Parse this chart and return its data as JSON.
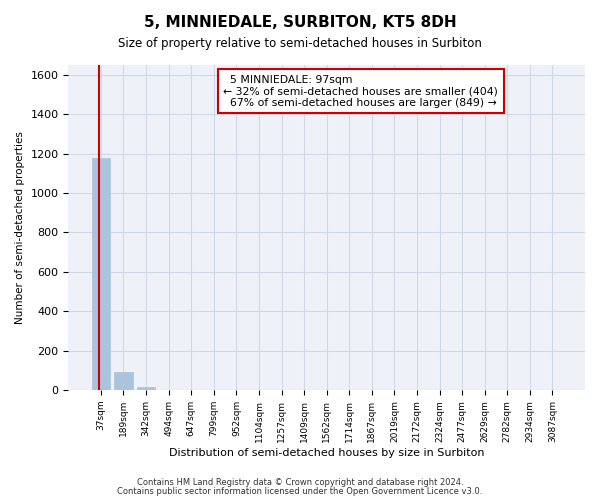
{
  "title": "5, MINNIEDALE, SURBITON, KT5 8DH",
  "subtitle": "Size of property relative to semi-detached houses in Surbiton",
  "xlabel": "Distribution of semi-detached houses by size in Surbiton",
  "ylabel": "Number of semi-detached properties",
  "footnote1": "Contains HM Land Registry data © Crown copyright and database right 2024.",
  "footnote2": "Contains public sector information licensed under the Open Government Licence v3.0.",
  "bar_labels": [
    "37sqm",
    "189sqm",
    "342sqm",
    "494sqm",
    "647sqm",
    "799sqm",
    "952sqm",
    "1104sqm",
    "1257sqm",
    "1409sqm",
    "1562sqm",
    "1714sqm",
    "1867sqm",
    "2019sqm",
    "2172sqm",
    "2324sqm",
    "2477sqm",
    "2629sqm",
    "2782sqm",
    "2934sqm",
    "3087sqm"
  ],
  "bar_values": [
    1180,
    90,
    18,
    3,
    1,
    0,
    0,
    0,
    0,
    0,
    0,
    0,
    0,
    0,
    0,
    0,
    0,
    0,
    0,
    0,
    0
  ],
  "bar_color": "#aac4de",
  "property_sqm": 97,
  "property_label": "5 MINNIEDALE: 97sqm",
  "smaller_pct": 32,
  "smaller_count": 404,
  "larger_pct": 67,
  "larger_count": 849,
  "vline_color": "#cc0000",
  "annotation_box_edgecolor": "#cc0000",
  "ylim": [
    0,
    1650
  ],
  "grid_color": "#d0d8e8",
  "background_color": "#eef2f8",
  "bar_width": 0.8
}
